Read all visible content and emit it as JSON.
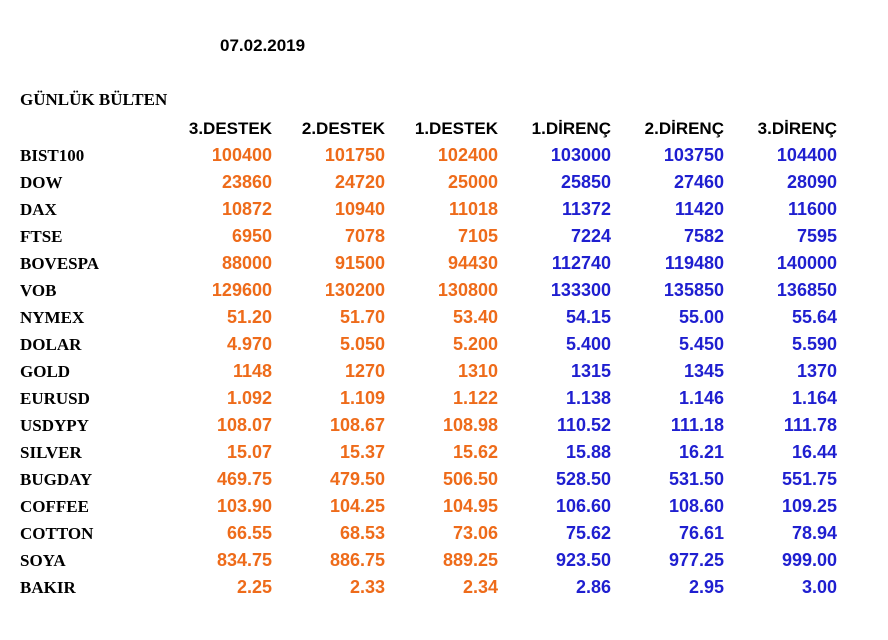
{
  "date": "07.02.2019",
  "title": "GÜNLÜK BÜLTEN",
  "headers": [
    "3.DESTEK",
    "2.DESTEK",
    "1.DESTEK",
    "1.DİRENÇ",
    "2.DİRENÇ",
    "3.DİRENÇ"
  ],
  "colors": {
    "support": "#ee6b1a",
    "resistance": "#1f1fd0",
    "label": "#000000"
  },
  "rows": [
    {
      "name": "BIST100",
      "values": [
        "100400",
        "101750",
        "102400",
        "103000",
        "103750",
        "104400"
      ]
    },
    {
      "name": "DOW",
      "values": [
        "23860",
        "24720",
        "25000",
        "25850",
        "27460",
        "28090"
      ]
    },
    {
      "name": "DAX",
      "values": [
        "10872",
        "10940",
        "11018",
        "11372",
        "11420",
        "11600"
      ]
    },
    {
      "name": "FTSE",
      "values": [
        "6950",
        "7078",
        "7105",
        "7224",
        "7582",
        "7595"
      ]
    },
    {
      "name": "BOVESPA",
      "values": [
        "88000",
        "91500",
        "94430",
        "112740",
        "119480",
        "140000"
      ]
    },
    {
      "name": "VOB",
      "values": [
        "129600",
        "130200",
        "130800",
        "133300",
        "135850",
        "136850"
      ]
    },
    {
      "name": "NYMEX",
      "values": [
        "51.20",
        "51.70",
        "53.40",
        "54.15",
        "55.00",
        "55.64"
      ]
    },
    {
      "name": "DOLAR",
      "values": [
        "4.970",
        "5.050",
        "5.200",
        "5.400",
        "5.450",
        "5.590"
      ]
    },
    {
      "name": "GOLD",
      "values": [
        "1148",
        "1270",
        "1310",
        "1315",
        "1345",
        "1370"
      ]
    },
    {
      "name": "EURUSD",
      "values": [
        "1.092",
        "1.109",
        "1.122",
        "1.138",
        "1.146",
        "1.164"
      ]
    },
    {
      "name": "USDYPY",
      "values": [
        "108.07",
        "108.67",
        "108.98",
        "110.52",
        "111.18",
        "111.78"
      ]
    },
    {
      "name": "SILVER",
      "values": [
        "15.07",
        "15.37",
        "15.62",
        "15.88",
        "16.21",
        "16.44"
      ]
    },
    {
      "name": "BUGDAY",
      "values": [
        "469.75",
        "479.50",
        "506.50",
        "528.50",
        "531.50",
        "551.75"
      ]
    },
    {
      "name": "COFFEE",
      "values": [
        "103.90",
        "104.25",
        "104.95",
        "106.60",
        "108.60",
        "109.25"
      ]
    },
    {
      "name": "COTTON",
      "values": [
        "66.55",
        "68.53",
        "73.06",
        "75.62",
        "76.61",
        "78.94"
      ]
    },
    {
      "name": "SOYA",
      "values": [
        "834.75",
        "886.75",
        "889.25",
        "923.50",
        "977.25",
        "999.00"
      ]
    },
    {
      "name": "BAKIR",
      "values": [
        "2.25",
        "2.33",
        "2.34",
        "2.86",
        "2.95",
        "3.00"
      ]
    }
  ]
}
